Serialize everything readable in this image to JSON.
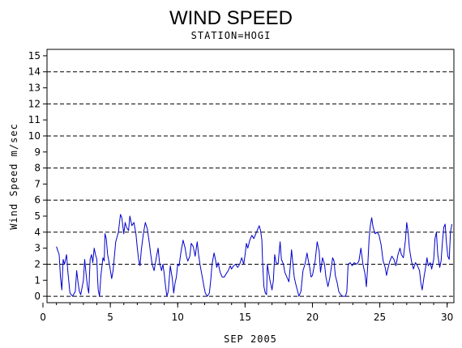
{
  "chart_data": {
    "type": "line",
    "title": "WIND SPEED",
    "subtitle": "STATION=HOGI",
    "xlabel": "SEP 2005",
    "ylabel": "Wind Speed m/sec",
    "xlim": [
      0.3,
      30.5
    ],
    "ylim": [
      -0.4,
      15.4
    ],
    "x_ticks": [
      0,
      5,
      10,
      15,
      20,
      25,
      30
    ],
    "y_ticks": [
      0,
      1,
      2,
      3,
      4,
      5,
      6,
      7,
      8,
      9,
      10,
      11,
      12,
      13,
      14,
      15
    ],
    "grid": {
      "type": "dashed",
      "y_lines": [
        0,
        2,
        4,
        6,
        8,
        10,
        12,
        14
      ]
    },
    "line_color": "#0000cc",
    "series": [
      {
        "points": [
          [
            1.0,
            3.1
          ],
          [
            1.2,
            2.6
          ],
          [
            1.3,
            1.2
          ],
          [
            1.4,
            0.4
          ],
          [
            1.5,
            2.3
          ],
          [
            1.6,
            2.0
          ],
          [
            1.75,
            2.6
          ],
          [
            1.85,
            1.5
          ],
          [
            2.0,
            0.2
          ],
          [
            2.2,
            0.0
          ],
          [
            2.4,
            0.3
          ],
          [
            2.5,
            1.6
          ],
          [
            2.6,
            0.9
          ],
          [
            2.7,
            0.3
          ],
          [
            2.8,
            0.1
          ],
          [
            3.0,
            1.0
          ],
          [
            3.1,
            2.3
          ],
          [
            3.2,
            1.4
          ],
          [
            3.3,
            0.6
          ],
          [
            3.4,
            0.2
          ],
          [
            3.5,
            2.3
          ],
          [
            3.6,
            2.6
          ],
          [
            3.7,
            2.1
          ],
          [
            3.8,
            3.0
          ],
          [
            3.9,
            2.6
          ],
          [
            4.0,
            2.3
          ],
          [
            4.05,
            1.2
          ],
          [
            4.1,
            0.4
          ],
          [
            4.2,
            0.0
          ],
          [
            4.3,
            1.3
          ],
          [
            4.45,
            2.4
          ],
          [
            4.55,
            2.2
          ],
          [
            4.6,
            3.9
          ],
          [
            4.7,
            3.6
          ],
          [
            4.8,
            2.6
          ],
          [
            4.95,
            1.9
          ],
          [
            5.1,
            1.1
          ],
          [
            5.2,
            1.6
          ],
          [
            5.4,
            3.4
          ],
          [
            5.6,
            4.0
          ],
          [
            5.75,
            5.1
          ],
          [
            5.85,
            4.9
          ],
          [
            6.0,
            3.9
          ],
          [
            6.1,
            4.6
          ],
          [
            6.2,
            4.3
          ],
          [
            6.35,
            4.1
          ],
          [
            6.45,
            5.0
          ],
          [
            6.6,
            4.4
          ],
          [
            6.75,
            4.6
          ],
          [
            6.9,
            3.9
          ],
          [
            7.0,
            3.0
          ],
          [
            7.1,
            2.3
          ],
          [
            7.2,
            1.9
          ],
          [
            7.3,
            2.9
          ],
          [
            7.45,
            3.9
          ],
          [
            7.6,
            4.6
          ],
          [
            7.75,
            4.2
          ],
          [
            7.9,
            3.3
          ],
          [
            8.0,
            2.6
          ],
          [
            8.1,
            2.0
          ],
          [
            8.25,
            1.6
          ],
          [
            8.45,
            2.6
          ],
          [
            8.55,
            3.0
          ],
          [
            8.65,
            2.1
          ],
          [
            8.8,
            1.6
          ],
          [
            8.9,
            2.0
          ],
          [
            9.0,
            1.4
          ],
          [
            9.1,
            0.6
          ],
          [
            9.2,
            0.0
          ],
          [
            9.3,
            0.3
          ],
          [
            9.45,
            1.9
          ],
          [
            9.6,
            1.1
          ],
          [
            9.7,
            0.2
          ],
          [
            9.8,
            0.8
          ],
          [
            9.9,
            1.2
          ],
          [
            10.0,
            2.0
          ],
          [
            10.1,
            1.9
          ],
          [
            10.25,
            2.8
          ],
          [
            10.4,
            3.5
          ],
          [
            10.55,
            3.0
          ],
          [
            10.65,
            2.5
          ],
          [
            10.75,
            2.2
          ],
          [
            10.9,
            2.5
          ],
          [
            11.0,
            3.3
          ],
          [
            11.15,
            3.1
          ],
          [
            11.3,
            2.5
          ],
          [
            11.45,
            3.4
          ],
          [
            11.55,
            2.6
          ],
          [
            11.65,
            2.0
          ],
          [
            11.8,
            1.3
          ],
          [
            11.95,
            0.6
          ],
          [
            12.05,
            0.2
          ],
          [
            12.2,
            0.0
          ],
          [
            12.35,
            0.2
          ],
          [
            12.45,
            1.0
          ],
          [
            12.55,
            2.0
          ],
          [
            12.7,
            2.7
          ],
          [
            12.8,
            2.3
          ],
          [
            12.9,
            1.8
          ],
          [
            13.0,
            2.1
          ],
          [
            13.15,
            1.5
          ],
          [
            13.3,
            1.2
          ],
          [
            13.45,
            1.2
          ],
          [
            13.6,
            1.4
          ],
          [
            13.75,
            1.6
          ],
          [
            13.9,
            1.9
          ],
          [
            14.0,
            1.7
          ],
          [
            14.15,
            1.9
          ],
          [
            14.3,
            2.0
          ],
          [
            14.45,
            1.8
          ],
          [
            14.6,
            2.0
          ],
          [
            14.75,
            2.4
          ],
          [
            14.9,
            2.0
          ],
          [
            15.0,
            2.6
          ],
          [
            15.1,
            3.3
          ],
          [
            15.2,
            3.0
          ],
          [
            15.35,
            3.5
          ],
          [
            15.5,
            3.8
          ],
          [
            15.65,
            3.6
          ],
          [
            15.8,
            3.9
          ],
          [
            15.95,
            4.2
          ],
          [
            16.05,
            4.4
          ],
          [
            16.15,
            4.1
          ],
          [
            16.25,
            3.5
          ],
          [
            16.3,
            2.1
          ],
          [
            16.4,
            0.6
          ],
          [
            16.5,
            0.2
          ],
          [
            16.6,
            0.1
          ],
          [
            16.65,
            2.0
          ],
          [
            16.75,
            1.5
          ],
          [
            16.85,
            1.0
          ],
          [
            17.0,
            0.4
          ],
          [
            17.1,
            1.0
          ],
          [
            17.2,
            2.6
          ],
          [
            17.3,
            2.1
          ],
          [
            17.45,
            2.0
          ],
          [
            17.6,
            3.4
          ],
          [
            17.7,
            2.3
          ],
          [
            17.85,
            2.0
          ],
          [
            17.95,
            1.5
          ],
          [
            18.1,
            1.2
          ],
          [
            18.25,
            0.9
          ],
          [
            18.35,
            1.8
          ],
          [
            18.45,
            2.9
          ],
          [
            18.55,
            2.0
          ],
          [
            18.65,
            1.2
          ],
          [
            18.75,
            0.8
          ],
          [
            18.85,
            0.5
          ],
          [
            19.0,
            0.0
          ],
          [
            19.15,
            0.3
          ],
          [
            19.3,
            1.6
          ],
          [
            19.45,
            2.0
          ],
          [
            19.6,
            2.7
          ],
          [
            19.7,
            2.2
          ],
          [
            19.8,
            1.8
          ],
          [
            19.9,
            1.2
          ],
          [
            20.0,
            1.3
          ],
          [
            20.2,
            2.2
          ],
          [
            20.35,
            3.4
          ],
          [
            20.5,
            2.8
          ],
          [
            20.6,
            1.5
          ],
          [
            20.75,
            2.4
          ],
          [
            20.9,
            2.0
          ],
          [
            21.0,
            1.2
          ],
          [
            21.15,
            0.6
          ],
          [
            21.3,
            1.2
          ],
          [
            21.5,
            2.4
          ],
          [
            21.6,
            2.2
          ],
          [
            21.7,
            1.3
          ],
          [
            21.85,
            0.8
          ],
          [
            21.95,
            0.3
          ],
          [
            22.1,
            0.1
          ],
          [
            22.25,
            0.0
          ],
          [
            22.45,
            0.0
          ],
          [
            22.55,
            0.3
          ],
          [
            22.65,
            2.0
          ],
          [
            22.8,
            2.1
          ],
          [
            22.95,
            1.9
          ],
          [
            23.1,
            2.1
          ],
          [
            23.3,
            2.0
          ],
          [
            23.45,
            2.2
          ],
          [
            23.6,
            3.0
          ],
          [
            23.75,
            2.0
          ],
          [
            23.9,
            1.4
          ],
          [
            24.0,
            0.6
          ],
          [
            24.1,
            1.8
          ],
          [
            24.2,
            3.5
          ],
          [
            24.3,
            4.4
          ],
          [
            24.4,
            4.9
          ],
          [
            24.5,
            4.3
          ],
          [
            24.65,
            3.9
          ],
          [
            24.8,
            4.0
          ],
          [
            24.95,
            3.8
          ],
          [
            25.1,
            3.2
          ],
          [
            25.25,
            2.2
          ],
          [
            25.4,
            1.8
          ],
          [
            25.5,
            1.3
          ],
          [
            25.6,
            1.7
          ],
          [
            25.75,
            2.2
          ],
          [
            25.9,
            2.5
          ],
          [
            26.05,
            2.3
          ],
          [
            26.2,
            1.9
          ],
          [
            26.35,
            2.6
          ],
          [
            26.5,
            3.0
          ],
          [
            26.6,
            2.6
          ],
          [
            26.75,
            2.4
          ],
          [
            26.9,
            3.5
          ],
          [
            27.0,
            4.6
          ],
          [
            27.1,
            4.0
          ],
          [
            27.2,
            3.0
          ],
          [
            27.35,
            2.2
          ],
          [
            27.5,
            1.7
          ],
          [
            27.65,
            2.1
          ],
          [
            27.8,
            1.9
          ],
          [
            27.95,
            1.6
          ],
          [
            28.05,
            0.8
          ],
          [
            28.15,
            0.4
          ],
          [
            28.3,
            1.3
          ],
          [
            28.4,
            1.8
          ],
          [
            28.5,
            2.4
          ],
          [
            28.6,
            1.9
          ],
          [
            28.75,
            2.1
          ],
          [
            28.85,
            1.7
          ],
          [
            29.0,
            2.3
          ],
          [
            29.1,
            3.6
          ],
          [
            29.2,
            4.0
          ],
          [
            29.3,
            2.6
          ],
          [
            29.45,
            1.8
          ],
          [
            29.55,
            2.2
          ],
          [
            29.65,
            3.4
          ],
          [
            29.75,
            4.3
          ],
          [
            29.85,
            4.5
          ],
          [
            29.95,
            3.3
          ],
          [
            30.05,
            2.5
          ],
          [
            30.15,
            2.3
          ],
          [
            30.25,
            4.0
          ],
          [
            30.35,
            4.5
          ]
        ]
      }
    ]
  }
}
